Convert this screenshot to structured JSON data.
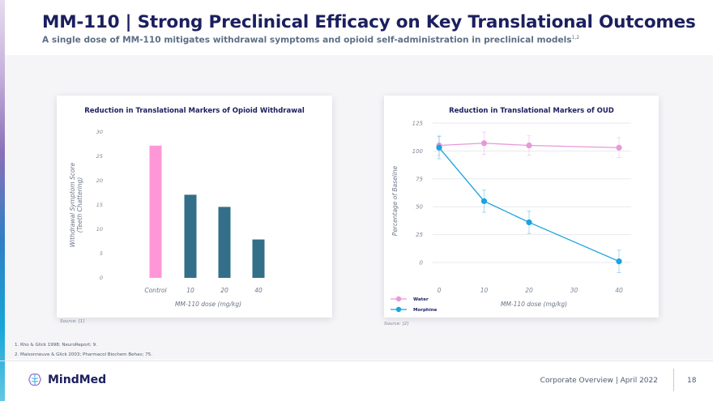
{
  "slide": {
    "title": "MM-110 | Strong Preclinical Efficacy on Key Translational Outcomes",
    "subtitle": "A single dose of MM-110 mitigates withdrawal symptoms and opioid self-administration in preclinical models",
    "subtitle_superscript": "1,2"
  },
  "footnotes": [
    "1. Rho & Glick 1998; NeuroReport; 9.",
    "2. Maisonneuve & Glick 2003; Pharmacol Biochem Behav; 75."
  ],
  "footer": {
    "brand": "MindMed",
    "text": "Corporate Overview | April 2022",
    "page": "18"
  },
  "chart_data": [
    {
      "type": "bar",
      "title": "Reduction in Translational Markers of Opioid Withdrawal",
      "xlabel": "MM-110 dose (mg/kg)",
      "ylabel_lines": [
        "Withdrawal Symptom Score",
        "(Teeth Chattering)"
      ],
      "categories": [
        "Control",
        "10",
        "20",
        "40"
      ],
      "values": [
        27.2,
        17.1,
        14.6,
        7.9
      ],
      "bar_colors": [
        "#ff96d8",
        "#336f88",
        "#336f88",
        "#336f88"
      ],
      "ylim": [
        0,
        30
      ],
      "yticks": [
        0,
        5,
        10,
        15,
        20,
        25,
        30
      ],
      "source": "Source: [1]"
    },
    {
      "type": "line",
      "title": "Reduction in Translational Markers of OUD",
      "xlabel": "MM-110 dose (mg/kg)",
      "ylabel": "Percentage of Baseline",
      "xticks": [
        0,
        10,
        20,
        30,
        40
      ],
      "yticks": [
        0,
        25,
        50,
        75,
        100,
        125
      ],
      "xlim": [
        0,
        40
      ],
      "ylim": [
        0,
        125
      ],
      "series": [
        {
          "name": "Water",
          "color": "#e79ad8",
          "x": [
            0,
            10,
            20,
            40
          ],
          "y": [
            105,
            107,
            105,
            103
          ],
          "err": [
            9,
            10,
            9,
            9
          ]
        },
        {
          "name": "Morphine",
          "color": "#1ca2df",
          "x": [
            0,
            10,
            20,
            40
          ],
          "y": [
            103,
            55,
            36,
            1
          ],
          "err": [
            10,
            10,
            10,
            10
          ]
        }
      ],
      "legend_position": "bottom-left",
      "source": "Source: [2]"
    }
  ]
}
